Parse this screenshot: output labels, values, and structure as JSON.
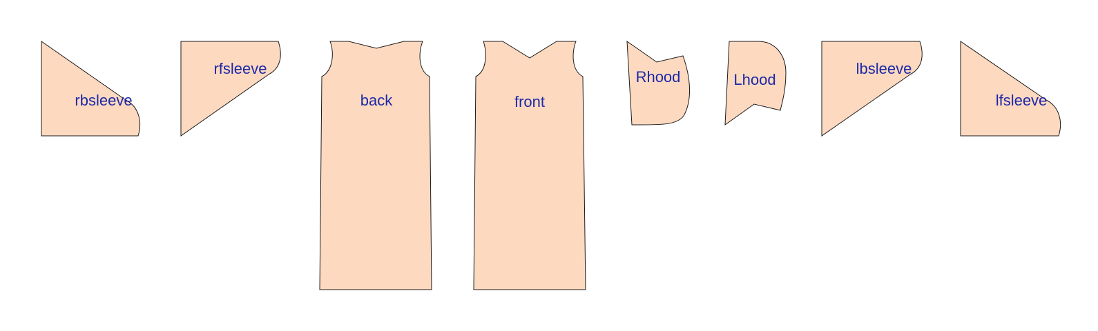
{
  "colors": {
    "piece_fill": "#fdd9c0",
    "label_text": "#1c28a8",
    "outline": "#1a1a1a"
  },
  "pieces": [
    {
      "id": "rbsleeve",
      "label": "rbsleeve"
    },
    {
      "id": "rfsleeve",
      "label": "rfsleeve"
    },
    {
      "id": "back",
      "label": "back"
    },
    {
      "id": "front",
      "label": "front"
    },
    {
      "id": "rhood",
      "label": "Rhood"
    },
    {
      "id": "lhood",
      "label": "Lhood"
    },
    {
      "id": "lbsleeve",
      "label": "lbsleeve"
    },
    {
      "id": "lfsleeve",
      "label": "lfsleeve"
    }
  ]
}
